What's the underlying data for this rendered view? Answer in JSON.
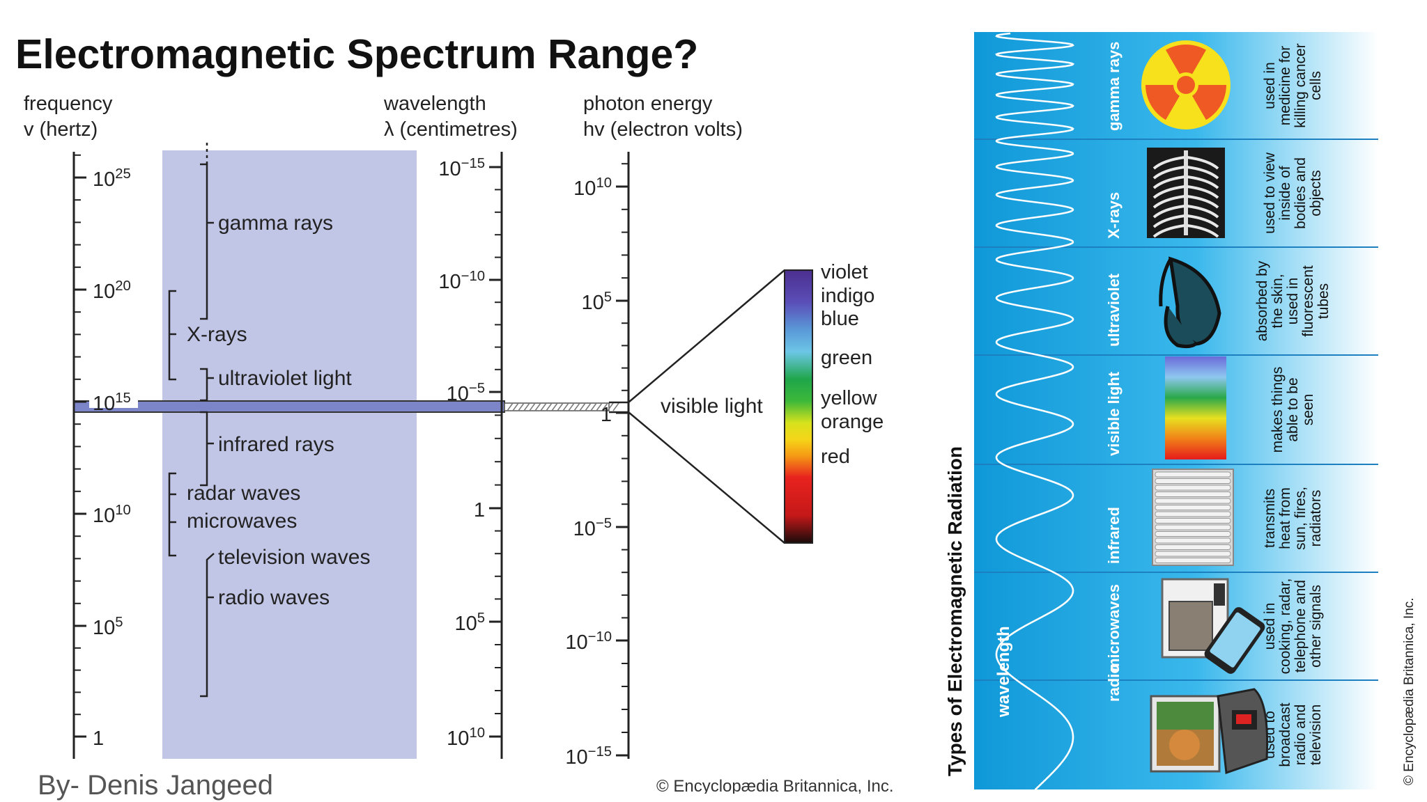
{
  "slide": {
    "title": "Electromagnetic Spectrum Range?",
    "byline": "By- Denis Jangeed"
  },
  "left_diagram": {
    "headers": {
      "frequency_line1": "frequency",
      "frequency_line2": "v (hertz)",
      "wavelength_line1": "wavelength",
      "wavelength_line2": "λ (centimetres)",
      "energy_line1": "photon energy",
      "energy_line2": "hv (electron volts)"
    },
    "frequency_ticks": [
      {
        "base": "10",
        "exp": "25"
      },
      {
        "base": "10",
        "exp": "20"
      },
      {
        "base": "10",
        "exp": "15"
      },
      {
        "base": "10",
        "exp": "10"
      },
      {
        "base": "10",
        "exp": "5"
      },
      {
        "base": "1",
        "exp": ""
      }
    ],
    "wavelength_ticks": [
      {
        "base": "10",
        "exp": "−15"
      },
      {
        "base": "10",
        "exp": "−10"
      },
      {
        "base": "10",
        "exp": "−5"
      },
      {
        "base": "1",
        "exp": ""
      },
      {
        "base": "10",
        "exp": "5"
      },
      {
        "base": "10",
        "exp": "10"
      }
    ],
    "energy_ticks": [
      {
        "base": "10",
        "exp": "10"
      },
      {
        "base": "10",
        "exp": "5"
      },
      {
        "base": "1",
        "exp": ""
      },
      {
        "base": "10",
        "exp": "−5"
      },
      {
        "base": "10",
        "exp": "−10"
      },
      {
        "base": "10",
        "exp": "−15"
      }
    ],
    "bands": [
      "gamma rays",
      "X-rays",
      "ultraviolet light",
      "infrared rays",
      "radar waves",
      "microwaves",
      "television waves",
      "radio waves"
    ],
    "visible_light_label": "visible light",
    "visible_colors": [
      "violet",
      "indigo",
      "blue",
      "green",
      "yellow",
      "orange",
      "red"
    ],
    "credit": "© Encyclopædia Britannica, Inc.",
    "band_fill_color": "#c2c6e6",
    "visible_band_color": "#7d85c9"
  },
  "right_diagram": {
    "title": "Types of Electromagnetic Radiation",
    "wavelength_label": "wavelength",
    "credit": "© Encyclopædia Britannica, Inc.",
    "background_color": "#1aa3e0",
    "types": [
      {
        "name": "gamma rays",
        "icon": "radiation-icon",
        "use": [
          "used in",
          "medicine for",
          "killing cancer",
          "cells"
        ]
      },
      {
        "name": "X-rays",
        "icon": "xray-ribcage-icon",
        "use": [
          "used to view",
          "inside of",
          "bodies and",
          "objects"
        ]
      },
      {
        "name": "ultraviolet",
        "icon": "sunglasses-icon",
        "use": [
          "absorbed by",
          "the skin,",
          "used in",
          "fluorescent",
          "tubes"
        ]
      },
      {
        "name": "visible light",
        "icon": "spectrum-icon",
        "use": [
          "makes things",
          "able to be",
          "seen"
        ]
      },
      {
        "name": "infrared",
        "icon": "radiator-icon",
        "use": [
          "transmits",
          "heat from",
          "sun, fires,",
          "radiators"
        ]
      },
      {
        "name": "microwaves",
        "icon": "microwave-phone-icon",
        "use": [
          "used in",
          "cooking, radar,",
          "telephone and",
          "other signals"
        ]
      },
      {
        "name": "radio",
        "icon": "television-radio-icon",
        "use": [
          "used to",
          "broadcast",
          "radio and",
          "television"
        ]
      }
    ]
  }
}
